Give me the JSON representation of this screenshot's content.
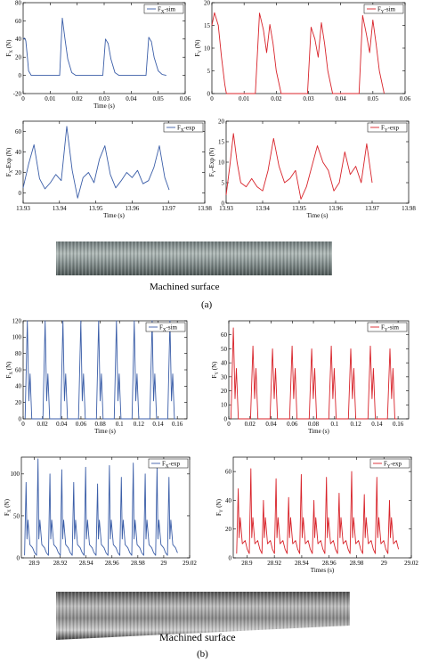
{
  "colors": {
    "blue": "#3b5ea8",
    "red": "#d8232a"
  },
  "captions": {
    "machined_a": "Machined surface",
    "label_a": "(a)",
    "machined_b": "Machined surface",
    "label_b": "(b)"
  },
  "chart_data": [
    {
      "id": "a-fx-sim",
      "type": "line",
      "legend": "F_X-sim",
      "color": "blue",
      "xlabel": "Time (s)",
      "ylabel": "F_X (N)",
      "xlim": [
        0,
        0.06
      ],
      "ylim": [
        -20,
        80
      ],
      "xticks": [
        0,
        0.01,
        0.02,
        0.03,
        0.04,
        0.05,
        0.06
      ],
      "xticklabels": [
        "0",
        "0.01",
        "0.02",
        "0.03",
        "0.04",
        "0.05",
        "0.06"
      ],
      "yticks": [
        -20,
        0,
        20,
        40,
        60,
        80
      ],
      "yticklabels": [
        "-20",
        "0",
        "20",
        "40",
        "60",
        "80"
      ],
      "x": [
        0,
        0.0005,
        0.001,
        0.0015,
        0.002,
        0.003,
        0.004,
        0.0135,
        0.0145,
        0.0155,
        0.0165,
        0.018,
        0.0195,
        0.0295,
        0.0305,
        0.0315,
        0.0325,
        0.034,
        0.0355,
        0.0455,
        0.0465,
        0.0475,
        0.0485,
        0.05,
        0.0515,
        0.053
      ],
      "y": [
        40,
        41,
        38,
        22,
        5,
        0,
        0,
        0,
        63,
        40,
        18,
        3,
        0,
        0,
        40,
        35,
        18,
        3,
        0,
        0,
        42,
        37,
        20,
        5,
        1,
        0
      ]
    },
    {
      "id": "a-fy-sim",
      "type": "line",
      "legend": "F_Y-sim",
      "color": "red",
      "xlabel": "",
      "ylabel": "F_Y (N)",
      "xlim": [
        0,
        0.06
      ],
      "ylim": [
        0,
        20
      ],
      "xticks": [
        0,
        0.01,
        0.02,
        0.03,
        0.04,
        0.05,
        0.06
      ],
      "xticklabels": [
        "0",
        "0.01",
        "0.02",
        "0.03",
        "0.04",
        "0.05",
        "0.06"
      ],
      "yticks": [
        0,
        5,
        10,
        15,
        20
      ],
      "yticklabels": [
        "0",
        "5",
        "10",
        "15",
        "20"
      ],
      "x": [
        0,
        0.0008,
        0.002,
        0.003,
        0.004,
        0.0045,
        0.0135,
        0.0148,
        0.016,
        0.017,
        0.018,
        0.019,
        0.02,
        0.0215,
        0.0297,
        0.0308,
        0.032,
        0.033,
        0.034,
        0.035,
        0.036,
        0.0375,
        0.0457,
        0.0468,
        0.048,
        0.049,
        0.05,
        0.051,
        0.052,
        0.0535
      ],
      "y": [
        15,
        17.8,
        15,
        8,
        2,
        0,
        0,
        17.7,
        14,
        9,
        15.2,
        11,
        5,
        0,
        0,
        14.6,
        12,
        8,
        15.6,
        11,
        5,
        0,
        0,
        17.2,
        13,
        9,
        16.2,
        11,
        5,
        0
      ]
    },
    {
      "id": "a-fx-exp",
      "type": "line",
      "legend": "F_X-exp",
      "color": "blue",
      "xlabel": "Time (s)",
      "ylabel": "F_X-Exp (N)",
      "xlim": [
        13.93,
        13.98
      ],
      "ylim": [
        -10,
        70
      ],
      "xticks": [
        13.93,
        13.94,
        13.95,
        13.96,
        13.97,
        13.98
      ],
      "xticklabels": [
        "13.93",
        "13.94",
        "13.95",
        "13.96",
        "13.97",
        "13.98"
      ],
      "yticks": [
        0,
        20,
        40,
        60
      ],
      "yticklabels": [
        "0",
        "20",
        "40",
        "60"
      ],
      "x": [
        13.93,
        13.9315,
        13.933,
        13.9345,
        13.936,
        13.9375,
        13.939,
        13.9405,
        13.942,
        13.9435,
        13.945,
        13.9465,
        13.948,
        13.9495,
        13.951,
        13.9525,
        13.954,
        13.9555,
        13.957,
        13.9585,
        13.96,
        13.9615,
        13.963,
        13.9645,
        13.966,
        13.9675,
        13.969,
        13.9702
      ],
      "y": [
        5,
        28,
        47,
        14,
        4,
        10,
        18,
        12,
        65,
        22,
        -5,
        15,
        20,
        10,
        33,
        46,
        18,
        5,
        12,
        20,
        15,
        22,
        9,
        12,
        25,
        46,
        15,
        3
      ]
    },
    {
      "id": "a-fy-exp",
      "type": "line",
      "legend": "F_Y-exp",
      "color": "red",
      "xlabel": "Time (s)",
      "ylabel": "F_Y-Exp (N)",
      "xlim": [
        13.93,
        13.98
      ],
      "ylim": [
        0,
        20
      ],
      "xticks": [
        13.93,
        13.94,
        13.95,
        13.96,
        13.97,
        13.98
      ],
      "xticklabels": [
        "13.93",
        "13.94",
        "13.95",
        "13.96",
        "13.97",
        "13.98"
      ],
      "yticks": [
        0,
        5,
        10,
        15,
        20
      ],
      "yticklabels": [
        "0",
        "5",
        "10",
        "15",
        "20"
      ],
      "x": [
        13.93,
        13.931,
        13.932,
        13.933,
        13.934,
        13.9355,
        13.937,
        13.9385,
        13.94,
        13.9415,
        13.943,
        13.9445,
        13.946,
        13.9475,
        13.949,
        13.9505,
        13.952,
        13.9535,
        13.955,
        13.9565,
        13.958,
        13.9595,
        13.961,
        13.9625,
        13.964,
        13.9655,
        13.967,
        13.9685,
        13.97
      ],
      "y": [
        2,
        9,
        17,
        10,
        5,
        4,
        6,
        4,
        3,
        8,
        15.8,
        9,
        5,
        6,
        8,
        1,
        4,
        9,
        14,
        10,
        8,
        3,
        5,
        12.5,
        7,
        9,
        5,
        14.5,
        5
      ]
    },
    {
      "id": "b-fx-sim",
      "type": "line",
      "legend": "F_X-sim",
      "color": "blue",
      "xlabel": "Time (s)",
      "ylabel": "F_X (N)",
      "xlim": [
        0,
        0.17
      ],
      "ylim": [
        0,
        120
      ],
      "xticks": [
        0,
        0.02,
        0.04,
        0.06,
        0.08,
        0.1,
        0.12,
        0.14,
        0.16
      ],
      "xticklabels": [
        "0",
        "0.02",
        "0.04",
        "0.06",
        "0.08",
        "0.1",
        "0.12",
        "0.14",
        "0.16"
      ],
      "yticks": [
        0,
        20,
        40,
        60,
        80,
        100,
        120
      ],
      "yticklabels": [
        "0",
        "20",
        "40",
        "60",
        "80",
        "100",
        "120"
      ],
      "period": 0.0185,
      "start": 0.002,
      "n": 9,
      "peak": 120,
      "shoulder": 55
    },
    {
      "id": "b-fy-sim",
      "type": "line",
      "legend": "F_Y-sim",
      "color": "red",
      "xlabel": "Time (s)",
      "ylabel": "F_Y (N)",
      "xlim": [
        0,
        0.17
      ],
      "ylim": [
        0,
        70
      ],
      "xticks": [
        0,
        0.02,
        0.04,
        0.06,
        0.08,
        0.1,
        0.12,
        0.14,
        0.16
      ],
      "xticklabels": [
        "0",
        "0.02",
        "0.04",
        "0.06",
        "0.08",
        "0.1",
        "0.12",
        "0.14",
        "0.16"
      ],
      "yticks": [
        0,
        10,
        20,
        30,
        40,
        50,
        60
      ],
      "yticklabels": [
        "0",
        "10",
        "20",
        "30",
        "40",
        "50",
        "60"
      ],
      "period": 0.0185,
      "start": 0.002,
      "n": 9,
      "peaks": [
        65,
        52,
        50,
        52,
        50,
        52,
        50,
        52,
        50
      ],
      "shoulder": 36
    },
    {
      "id": "b-fx-exp",
      "type": "line",
      "legend": "F_X-exp",
      "color": "blue",
      "xlabel": "",
      "ylabel": "F_X (N)",
      "xlim": [
        28.89,
        29.02
      ],
      "ylim": [
        0,
        120
      ],
      "xticks": [
        28.9,
        28.92,
        28.94,
        28.96,
        28.98,
        29,
        29.02
      ],
      "xticklabels": [
        "28.9",
        "28.92",
        "28.94",
        "28.96",
        "28.98",
        "29",
        "29.02"
      ],
      "yticks": [
        0,
        50,
        100
      ],
      "yticklabels": [
        "0",
        "50",
        "100"
      ],
      "period": 0.0092,
      "start": 28.8925,
      "n": 13,
      "peaks": [
        90,
        118,
        100,
        105,
        90,
        108,
        88,
        110,
        96,
        113,
        100,
        108,
        96
      ],
      "shoulder": 45
    },
    {
      "id": "b-fy-exp",
      "type": "line",
      "legend": "F_Y-exp",
      "color": "red",
      "xlabel": "Times (s)",
      "ylabel": "F_Y (N)",
      "xlim": [
        28.89,
        29.02
      ],
      "ylim": [
        0,
        70
      ],
      "xticks": [
        28.9,
        28.92,
        28.94,
        28.96,
        28.98,
        29,
        29.02
      ],
      "xticklabels": [
        "28.9",
        "28.92",
        "28.94",
        "28.96",
        "28.98",
        "29",
        "29.02"
      ],
      "yticks": [
        0,
        20,
        40,
        60
      ],
      "yticklabels": [
        "0",
        "20",
        "40",
        "60"
      ],
      "period": 0.0092,
      "start": 28.8925,
      "n": 13,
      "peaks": [
        48,
        62,
        40,
        55,
        42,
        58,
        40,
        56,
        45,
        60,
        44,
        56,
        40
      ],
      "shoulder": 28
    }
  ]
}
